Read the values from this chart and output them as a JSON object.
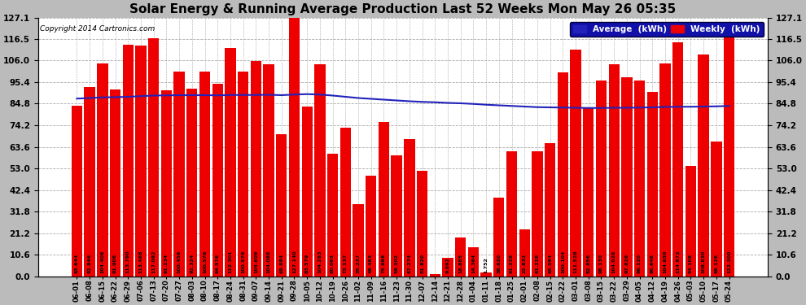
{
  "title": "Solar Energy & Running Average Production Last 52 Weeks Mon May 26 05:35",
  "copyright": "Copyright 2014 Cartronics.com",
  "ylim": [
    0.0,
    127.1
  ],
  "yticks": [
    0.0,
    10.6,
    21.2,
    31.8,
    42.4,
    53.0,
    63.6,
    74.2,
    84.8,
    95.4,
    106.0,
    116.5,
    127.1
  ],
  "bar_color": "#ee0000",
  "line_color": "#2222bb",
  "fig_bg_color": "#bbbbbb",
  "plot_bg_color": "#ffffff",
  "legend_bg_color": "#1111aa",
  "title_fontsize": 11,
  "label_fontsize": 4.5,
  "tick_fontsize": 7.5,
  "categories": [
    "06-01",
    "06-08",
    "06-15",
    "06-22",
    "06-29",
    "07-06",
    "07-13",
    "07-20",
    "07-27",
    "08-03",
    "08-10",
    "08-17",
    "08-24",
    "08-31",
    "09-07",
    "09-14",
    "09-21",
    "09-28",
    "10-05",
    "10-12",
    "10-19",
    "10-26",
    "11-02",
    "11-09",
    "11-16",
    "11-23",
    "11-30",
    "12-07",
    "12-14",
    "12-21",
    "12-28",
    "01-04",
    "01-11",
    "01-18",
    "01-25",
    "02-01",
    "02-08",
    "02-15",
    "02-22",
    "03-01",
    "03-08",
    "03-15",
    "03-22",
    "03-29",
    "04-05",
    "04-12",
    "04-19",
    "04-26",
    "05-03",
    "05-10",
    "05-17",
    "05-24"
  ],
  "weekly_values": [
    83.644,
    92.846,
    104.406,
    91.906,
    113.79,
    113.468,
    117.092,
    91.234,
    100.456,
    92.324,
    100.576,
    94.576,
    112.301,
    100.576,
    105.609,
    104.068,
    69.884,
    127.14,
    83.579,
    104.283,
    60.093,
    73.137,
    35.237,
    49.463,
    75.968,
    59.302,
    67.274,
    51.82,
    1.053,
    9.092,
    18.885,
    14.364,
    1.752,
    38.62,
    61.228,
    22.832,
    61.228,
    65.564,
    100.104,
    111.528,
    82.856,
    96.13,
    104.028,
    97.826,
    96.12,
    90.648,
    104.65,
    114.872,
    54.108,
    108.83,
    66.128,
    122.3
  ],
  "avg_values": [
    87.3,
    87.6,
    87.9,
    88.0,
    88.2,
    88.5,
    88.8,
    88.9,
    89.0,
    89.0,
    89.0,
    88.9,
    89.1,
    89.1,
    89.1,
    89.2,
    89.0,
    89.3,
    89.5,
    89.3,
    88.8,
    88.2,
    87.6,
    87.2,
    86.8,
    86.4,
    86.0,
    85.7,
    85.5,
    85.2,
    85.0,
    84.7,
    84.3,
    84.0,
    83.7,
    83.4,
    83.1,
    83.0,
    82.9,
    82.8,
    82.7,
    82.7,
    82.8,
    82.8,
    82.9,
    83.0,
    83.2,
    83.3,
    83.3,
    83.4,
    83.5,
    83.7
  ]
}
